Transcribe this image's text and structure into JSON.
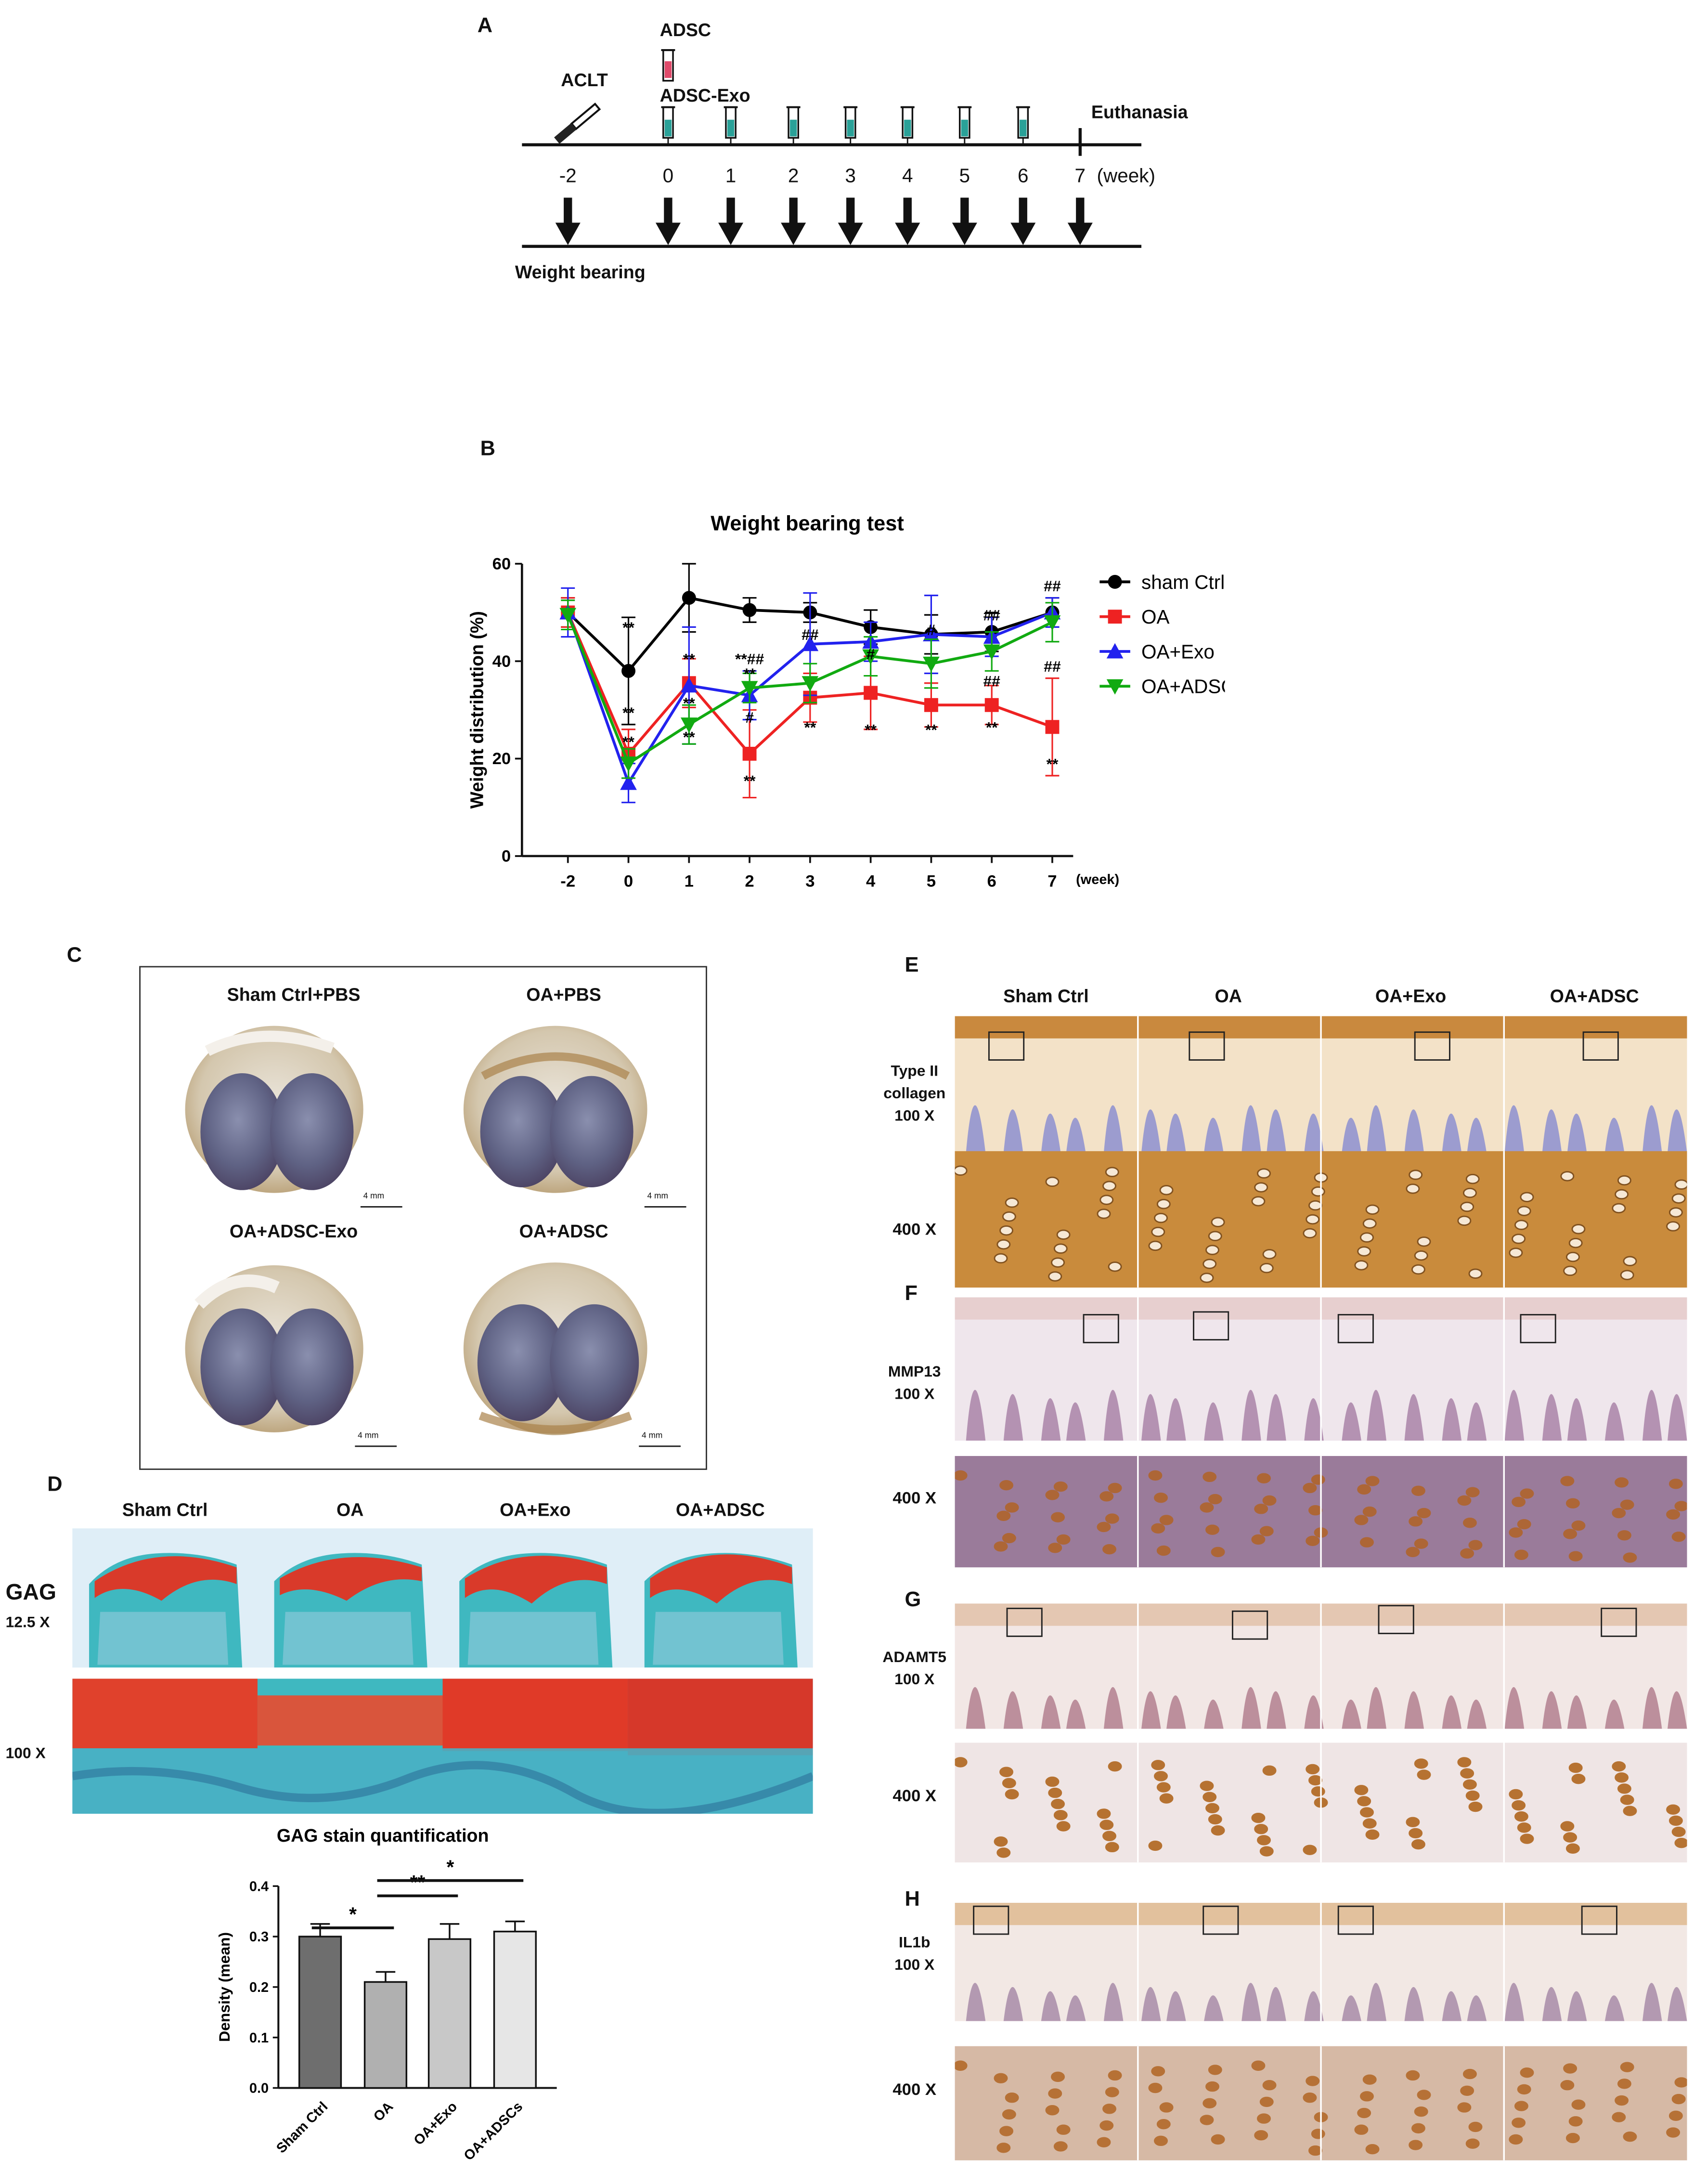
{
  "panel_labels": {
    "a": "A",
    "b": "B",
    "c": "C",
    "d": "D",
    "e": "E",
    "f": "F",
    "g": "G",
    "h": "H"
  },
  "timeline": {
    "surgery": "ACLT",
    "injection_top": "ADSC",
    "injection_bottom": "ADSC-Exo",
    "end_label": "Euthanasia",
    "weeks": [
      "-2",
      "0",
      "1",
      "2",
      "3",
      "4",
      "5",
      "6",
      "7"
    ],
    "unit": "(week)",
    "test_label": "Weight bearing"
  },
  "chart_data": [
    {
      "type": "line",
      "title": "Weight bearing test",
      "xlabel": "",
      "x_unit": "(week)",
      "ylabel": "Weight distribution (%)",
      "categories": [
        "-2",
        "0",
        "1",
        "2",
        "3",
        "4",
        "5",
        "6",
        "7"
      ],
      "ylim": [
        0,
        60
      ],
      "yticks": [
        0,
        20,
        40,
        60
      ],
      "series": [
        {
          "name": "sham Ctrl",
          "color": "#000000",
          "marker": "circle",
          "values": [
            50,
            38,
            53,
            50.5,
            50,
            47,
            45.5,
            46,
            50
          ],
          "errors": [
            3,
            11,
            7,
            2.5,
            2,
            3.5,
            4,
            4,
            3
          ]
        },
        {
          "name": "OA",
          "color": "#ee2222",
          "marker": "square",
          "values": [
            50,
            21,
            35.5,
            21,
            32.5,
            33.5,
            31,
            31,
            26.5
          ],
          "errors": [
            3,
            5,
            5,
            9,
            5,
            7.5,
            4.5,
            4,
            10
          ]
        },
        {
          "name": "OA+Exo",
          "color": "#2222ee",
          "marker": "triangle-up",
          "values": [
            50,
            15,
            35,
            33,
            43.5,
            44,
            45.5,
            45,
            50
          ],
          "errors": [
            5,
            4,
            12,
            5,
            10.5,
            4,
            8,
            4,
            3
          ]
        },
        {
          "name": "OA+ADSC",
          "color": "#11aa11",
          "marker": "triangle-down",
          "values": [
            49.5,
            19,
            27,
            34.5,
            35.5,
            41,
            39.5,
            42,
            48
          ],
          "errors": [
            3,
            3,
            4,
            3,
            4,
            4,
            5,
            4,
            4
          ]
        }
      ],
      "annotations": [
        {
          "week": "0",
          "text": "**",
          "value": 47
        },
        {
          "week": "0",
          "text": "**",
          "value": 29.5
        },
        {
          "week": "0",
          "text": "**",
          "value": 23.5
        },
        {
          "week": "1",
          "text": "**",
          "value": 40.5
        },
        {
          "week": "1",
          "text": "**",
          "value": 31.5
        },
        {
          "week": "1",
          "text": "**",
          "value": 24.5
        },
        {
          "week": "2",
          "text": "**##",
          "value": 40.5
        },
        {
          "week": "2",
          "text": "**",
          "value": 37.5
        },
        {
          "week": "2",
          "text": "#",
          "value": 28.5
        },
        {
          "week": "2",
          "text": "**",
          "value": 15.5
        },
        {
          "week": "3",
          "text": "##",
          "value": 45.5
        },
        {
          "week": "3",
          "text": "**",
          "value": 26.5
        },
        {
          "week": "4",
          "text": "#",
          "value": 41.5
        },
        {
          "week": "4",
          "text": "**",
          "value": 26
        },
        {
          "week": "5",
          "text": "#",
          "value": 46.5
        },
        {
          "week": "5",
          "text": "**",
          "value": 26
        },
        {
          "week": "6",
          "text": "##",
          "value": 49.5
        },
        {
          "week": "6",
          "text": "##",
          "value": 36
        },
        {
          "week": "6",
          "text": "**",
          "value": 26.5
        },
        {
          "week": "7",
          "text": "##",
          "value": 55.5
        },
        {
          "week": "7",
          "text": "##",
          "value": 39
        },
        {
          "week": "7",
          "text": "**",
          "value": 19
        }
      ]
    },
    {
      "type": "bar",
      "title": "GAG stain quantification",
      "xlabel": "",
      "ylabel": "Density (mean)",
      "categories": [
        "Sham Ctrl",
        "OA",
        "OA+Exo",
        "OA+ADSCs"
      ],
      "values": [
        0.3,
        0.21,
        0.295,
        0.31
      ],
      "errors": [
        0.025,
        0.02,
        0.03,
        0.02
      ],
      "bar_colors": [
        "#6e6e6e",
        "#b0b0b0",
        "#c8c8c8",
        "#e6e6e6"
      ],
      "ylim": [
        0,
        0.4
      ],
      "yticks": [
        "0.0",
        "0.1",
        "0.2",
        "0.3",
        "0.4"
      ],
      "significance": [
        {
          "from": "Sham Ctrl",
          "to": "OA",
          "text": "*"
        },
        {
          "from": "OA",
          "to": "OA+Exo",
          "text": "**"
        },
        {
          "from": "OA",
          "to": "OA+ADSCs",
          "text": "*"
        }
      ]
    }
  ],
  "panel_c": {
    "labels": [
      "Sham Ctrl+PBS",
      "OA+PBS",
      "OA+ADSC-Exo",
      "OA+ADSC"
    ],
    "scale": "4 mm"
  },
  "panel_d": {
    "groups": [
      "Sham Ctrl",
      "OA",
      "OA+Exo",
      "OA+ADSC"
    ],
    "stain": "GAG",
    "mag_low": "12.5 X",
    "mag_high": "100 X"
  },
  "ihc": {
    "groups": [
      "Sham Ctrl",
      "OA",
      "OA+Exo",
      "OA+ADSC"
    ],
    "panels": [
      {
        "marker_line1": "Type II",
        "marker_line2": "collagen",
        "mag_low": "100 X",
        "mag_high": "400 X"
      },
      {
        "marker_line1": "MMP13",
        "marker_line2": "",
        "mag_low": "100 X",
        "mag_high": "400 X"
      },
      {
        "marker_line1": "ADAMT5",
        "marker_line2": "",
        "mag_low": "100 X",
        "mag_high": "400 X"
      },
      {
        "marker_line1": "IL1b",
        "marker_line2": "",
        "mag_low": "100 X",
        "mag_high": "400 X"
      }
    ]
  },
  "colors": {
    "syringe": "#2aa198",
    "collagen_stain": "#c98b3c",
    "gag_red": "#d93a2a",
    "fast_green": "#3fb8c0",
    "hematoxylin": "#8c7fc0"
  }
}
